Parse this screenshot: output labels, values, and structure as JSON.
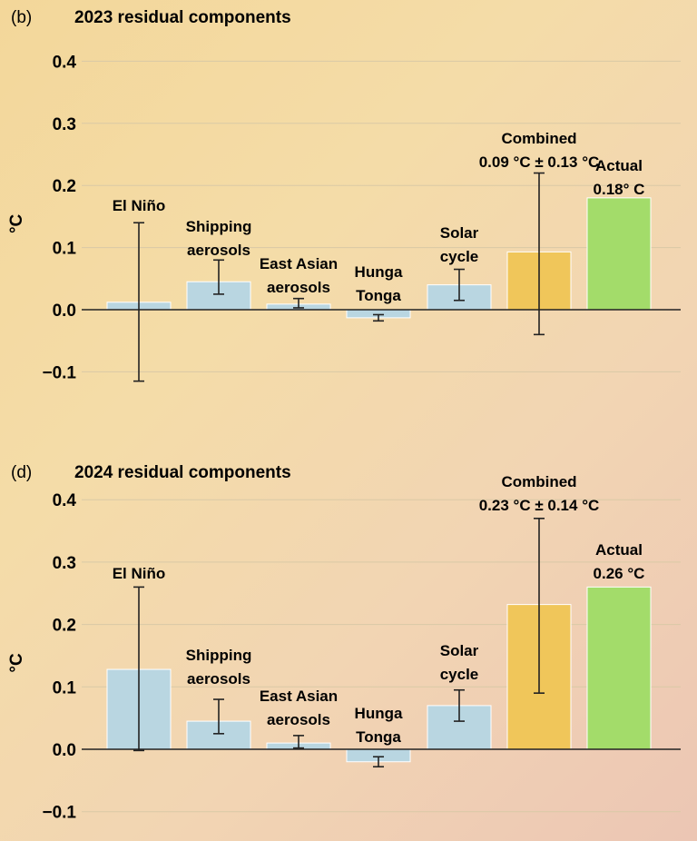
{
  "colors": {
    "component": "#b9d6e1",
    "combined": "#f0c65a",
    "actual": "#a3dc6a",
    "bar_edge": "#ffffff"
  },
  "chart_data": [
    {
      "type": "bar",
      "panel_label": "(b)",
      "title": "2023 residual components",
      "ylabel": "°C",
      "ylim": [
        -0.15,
        0.4
      ],
      "yticks": [
        "0.4",
        "0.3",
        "0.2",
        "0.1",
        "0.0",
        "−0.1"
      ],
      "ytick_values": [
        0.4,
        0.3,
        0.2,
        0.1,
        0.0,
        -0.1
      ],
      "grid": true,
      "categories": [
        {
          "label": [
            "El Niño"
          ],
          "value": 0.012,
          "err_low": -0.115,
          "err_high": 0.14,
          "kind": "component"
        },
        {
          "label": [
            "Shipping",
            "aerosols"
          ],
          "value": 0.045,
          "err_low": 0.025,
          "err_high": 0.08,
          "kind": "component"
        },
        {
          "label": [
            "East Asian",
            "aerosols"
          ],
          "value": 0.009,
          "err_low": 0.003,
          "err_high": 0.018,
          "kind": "component"
        },
        {
          "label": [
            "Hunga",
            "Tonga"
          ],
          "value": -0.013,
          "err_low": -0.018,
          "err_high": -0.008,
          "kind": "component"
        },
        {
          "label": [
            "Solar",
            "cycle"
          ],
          "value": 0.04,
          "err_low": 0.015,
          "err_high": 0.065,
          "kind": "component"
        },
        {
          "label": [
            "Combined",
            "0.09 °C ± 0.13 °C"
          ],
          "value": 0.093,
          "err_low": -0.04,
          "err_high": 0.22,
          "kind": "combined"
        },
        {
          "label": [
            "Actual",
            "0.18° C"
          ],
          "value": 0.18,
          "err_low": null,
          "err_high": null,
          "kind": "actual"
        }
      ]
    },
    {
      "type": "bar",
      "panel_label": "(d)",
      "title": "2024 residual components",
      "ylabel": "°C",
      "ylim": [
        -0.15,
        0.4
      ],
      "yticks": [
        "0.4",
        "0.3",
        "0.2",
        "0.1",
        "0.0",
        "−0.1"
      ],
      "ytick_values": [
        0.4,
        0.3,
        0.2,
        0.1,
        0.0,
        -0.1
      ],
      "grid": true,
      "categories": [
        {
          "label": [
            "El Niño"
          ],
          "value": 0.128,
          "err_low": -0.002,
          "err_high": 0.26,
          "kind": "component"
        },
        {
          "label": [
            "Shipping",
            "aerosols"
          ],
          "value": 0.045,
          "err_low": 0.025,
          "err_high": 0.08,
          "kind": "component"
        },
        {
          "label": [
            "East Asian",
            "aerosols"
          ],
          "value": 0.01,
          "err_low": 0.002,
          "err_high": 0.022,
          "kind": "component"
        },
        {
          "label": [
            "Hunga",
            "Tonga"
          ],
          "value": -0.02,
          "err_low": -0.028,
          "err_high": -0.012,
          "kind": "component"
        },
        {
          "label": [
            "Solar",
            "cycle"
          ],
          "value": 0.07,
          "err_low": 0.045,
          "err_high": 0.095,
          "kind": "component"
        },
        {
          "label": [
            "Combined",
            "0.23 °C ± 0.14 °C"
          ],
          "value": 0.232,
          "err_low": 0.09,
          "err_high": 0.37,
          "kind": "combined"
        },
        {
          "label": [
            "Actual",
            "0.26 °C"
          ],
          "value": 0.26,
          "err_low": null,
          "err_high": null,
          "kind": "actual"
        }
      ]
    }
  ]
}
